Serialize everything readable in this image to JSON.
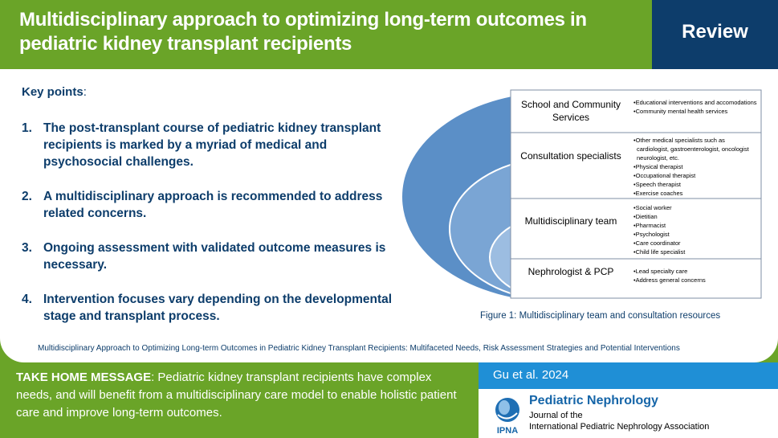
{
  "header": {
    "title": "Multidisciplinary approach to optimizing long-term outcomes in pediatric kidney transplant recipients",
    "badge": "Review"
  },
  "key_points": {
    "heading": "Key points",
    "heading_suffix": ":",
    "items": [
      {
        "num": "1.",
        "text": "The post-transplant course of pediatric kidney transplant recipients is marked by a myriad of medical and psychosocial challenges."
      },
      {
        "num": "2.",
        "text": "A multidisciplinary approach is recommended to address related concerns."
      },
      {
        "num": "3.",
        "text": "Ongoing assessment with validated outcome measures is necessary."
      },
      {
        "num": "4.",
        "text": "Intervention focuses vary depending on the developmental stage and transplant process."
      }
    ]
  },
  "figure": {
    "rows": [
      {
        "label": "School and Community Services",
        "bullets": [
          "•Educational interventions and accomodations",
          "•Community mental health services"
        ]
      },
      {
        "label": "Consultation specialists",
        "bullets": [
          "•Other medical specialists such as cardiologist, gastroenterologist, oncologist neurologist, etc.",
          "•Physical therapist",
          "•Occupational therapist",
          "•Speech therapist",
          "•Exercise coaches"
        ]
      },
      {
        "label": "Multidisciplinary team",
        "bullets": [
          "•Social worker",
          "•Dietitian",
          "•Pharmacist",
          "•Psychologist",
          "•Care coordinator",
          "•Child life specialist"
        ]
      },
      {
        "label": "Nephrologist & PCP",
        "bullets": [
          "•Lead specialty care",
          "•Address general concerns"
        ]
      }
    ],
    "caption": "Figure 1: Multidisciplinary team and consultation resources",
    "colors": {
      "ring1": "#5b8fc7",
      "ring2": "#7aa5d4",
      "ring3": "#9cbde1",
      "ring4": "#bfd4ec",
      "border": "#7f8fa6"
    }
  },
  "article_title": "Multidisciplinary Approach to Optimizing Long-term Outcomes in Pediatric Kidney Transplant Recipients: Multifaceted Needs, Risk Assessment Strategies and Potential Interventions",
  "take_home": {
    "label": "TAKE HOME MESSAGE",
    "text": ": Pediatric kidney transplant recipients have complex needs, and will benefit from a multidisciplinary care model to enable holistic patient care and improve long-term outcomes."
  },
  "citation": {
    "author": "Gu et al. 2024"
  },
  "journal": {
    "name": "Pediatric Nephrology",
    "sub1": "Journal of the",
    "sub2": "International Pediatric Nephrology Association",
    "logo_text": "IPNA"
  },
  "colors": {
    "green": "#6aa428",
    "navy": "#0d3d6b",
    "blue": "#1f8fd6"
  }
}
